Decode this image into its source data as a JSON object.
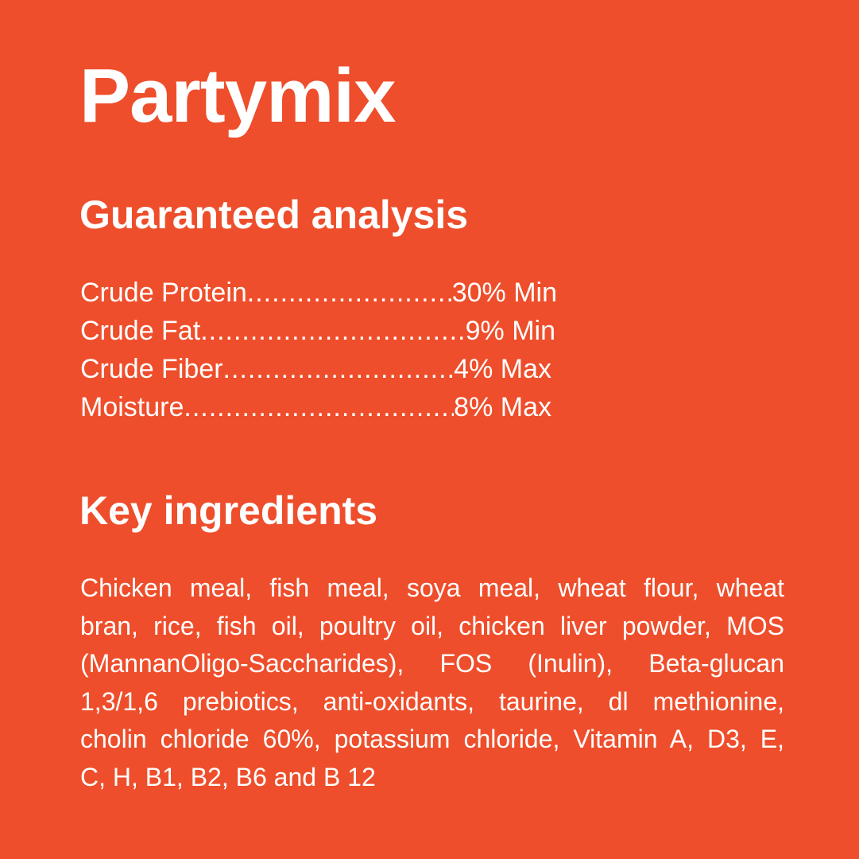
{
  "title": "Partymix",
  "analysis": {
    "heading": "Guaranteed analysis",
    "rows": [
      {
        "label": "Crude Protein",
        "value": "30% Min"
      },
      {
        "label": "Crude Fat",
        "value": "9% Min"
      },
      {
        "label": "Crude Fiber",
        "value": "4% Max"
      },
      {
        "label": "Moisture",
        "value": "8% Max"
      }
    ]
  },
  "ingredients": {
    "heading": "Key ingredients",
    "lines": [
      "Chicken meal, fish meal, soya meal, wheat flour, wheat",
      "bran, rice, fish oil, poultry oil, chicken liver powder, MOS",
      "(MannanOligo-Saccharides), FOS (Inulin), Beta-glucan",
      "1,3/1,6 prebiotics, anti-oxidants, taurine, dl methionine,",
      "cholin chloride 60%, potassium chloride, Vitamin A, D3, E,",
      "C, H, B1, B2, B6 and B 12"
    ]
  },
  "colors": {
    "background": "#EE4E2B",
    "text": "#FFFFFF"
  }
}
